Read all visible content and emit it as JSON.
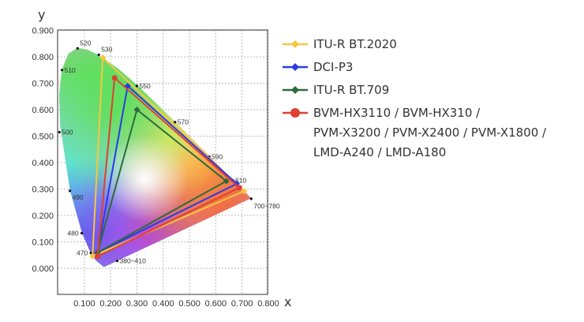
{
  "chart_data": {
    "type": "scatter",
    "title": "",
    "xlabel": "x",
    "ylabel": "y",
    "xlim": [
      0,
      0.8
    ],
    "ylim": [
      -0.1,
      0.9
    ],
    "grid": true,
    "legend_position": "right",
    "x_ticks": [
      "0.100",
      "0.200",
      "0.300",
      "0.400",
      "0.500",
      "0.600",
      "0.700",
      "0.800"
    ],
    "y_ticks": [
      "0.000",
      "0.100",
      "0.200",
      "0.300",
      "0.400",
      "0.500",
      "0.600",
      "0.700",
      "0.800",
      "0.900"
    ],
    "spectral_locus": [
      [
        0.1741,
        0.005
      ],
      [
        0.144,
        0.0297
      ],
      [
        0.1241,
        0.0578
      ],
      [
        0.0913,
        0.1327
      ],
      [
        0.0454,
        0.295
      ],
      [
        0.0082,
        0.5384
      ],
      [
        0.0039,
        0.6548
      ],
      [
        0.0139,
        0.7502
      ],
      [
        0.0389,
        0.812
      ],
      [
        0.0743,
        0.8338
      ],
      [
        0.1142,
        0.8262
      ],
      [
        0.1547,
        0.8059
      ],
      [
        0.2296,
        0.7543
      ],
      [
        0.3016,
        0.6923
      ],
      [
        0.3731,
        0.6245
      ],
      [
        0.4441,
        0.5547
      ],
      [
        0.5125,
        0.4866
      ],
      [
        0.5752,
        0.4242
      ],
      [
        0.627,
        0.3725
      ],
      [
        0.6658,
        0.334
      ],
      [
        0.6915,
        0.3083
      ],
      [
        0.7347,
        0.2653
      ]
    ],
    "wavelength_labels": [
      {
        "label": "520",
        "x": 0.074,
        "y": 0.832
      },
      {
        "label": "530",
        "x": 0.155,
        "y": 0.808
      },
      {
        "label": "510",
        "x": 0.015,
        "y": 0.75
      },
      {
        "label": "550",
        "x": 0.3,
        "y": 0.69
      },
      {
        "label": "500",
        "x": 0.005,
        "y": 0.515
      },
      {
        "label": "570",
        "x": 0.445,
        "y": 0.553
      },
      {
        "label": "590",
        "x": 0.575,
        "y": 0.422
      },
      {
        "label": "610",
        "x": 0.665,
        "y": 0.333
      },
      {
        "label": "700~780",
        "x": 0.735,
        "y": 0.263
      },
      {
        "label": "490",
        "x": 0.045,
        "y": 0.293
      },
      {
        "label": "480",
        "x": 0.09,
        "y": 0.133
      },
      {
        "label": "470",
        "x": 0.125,
        "y": 0.058
      },
      {
        "label": "380~410",
        "x": 0.225,
        "y": 0.028
      }
    ],
    "series": [
      {
        "name": "ITU-R BT.2020",
        "color": "#f5c842",
        "marker": "diamond",
        "points": [
          [
            0.708,
            0.292
          ],
          [
            0.17,
            0.797
          ],
          [
            0.131,
            0.046
          ]
        ]
      },
      {
        "name": "DCI-P3",
        "color": "#2b3be0",
        "marker": "diamond",
        "points": [
          [
            0.68,
            0.32
          ],
          [
            0.265,
            0.69
          ],
          [
            0.15,
            0.06
          ]
        ]
      },
      {
        "name": "ITU-R BT.709",
        "color": "#2e6b3a",
        "marker": "diamond",
        "points": [
          [
            0.64,
            0.33
          ],
          [
            0.3,
            0.6
          ],
          [
            0.15,
            0.06
          ]
        ]
      },
      {
        "name": "BVM-HX3110 / BVM-HX310 / PVM-X3200 / PVM-X2400 / PVM-X1800 / LMD-A240 / LMD-A180",
        "color": "#e04030",
        "marker": "circle",
        "points": [
          [
            0.69,
            0.305
          ],
          [
            0.215,
            0.72
          ],
          [
            0.15,
            0.045
          ]
        ]
      }
    ],
    "legend_lines": [
      "ITU-R BT.2020",
      "DCI-P3",
      "ITU-R BT.709",
      "BVM-HX3110 / BVM-HX310 /",
      "PVM-X3200 / PVM-X2400 / PVM-X1800 /",
      "LMD-A240 / LMD-A180"
    ]
  }
}
